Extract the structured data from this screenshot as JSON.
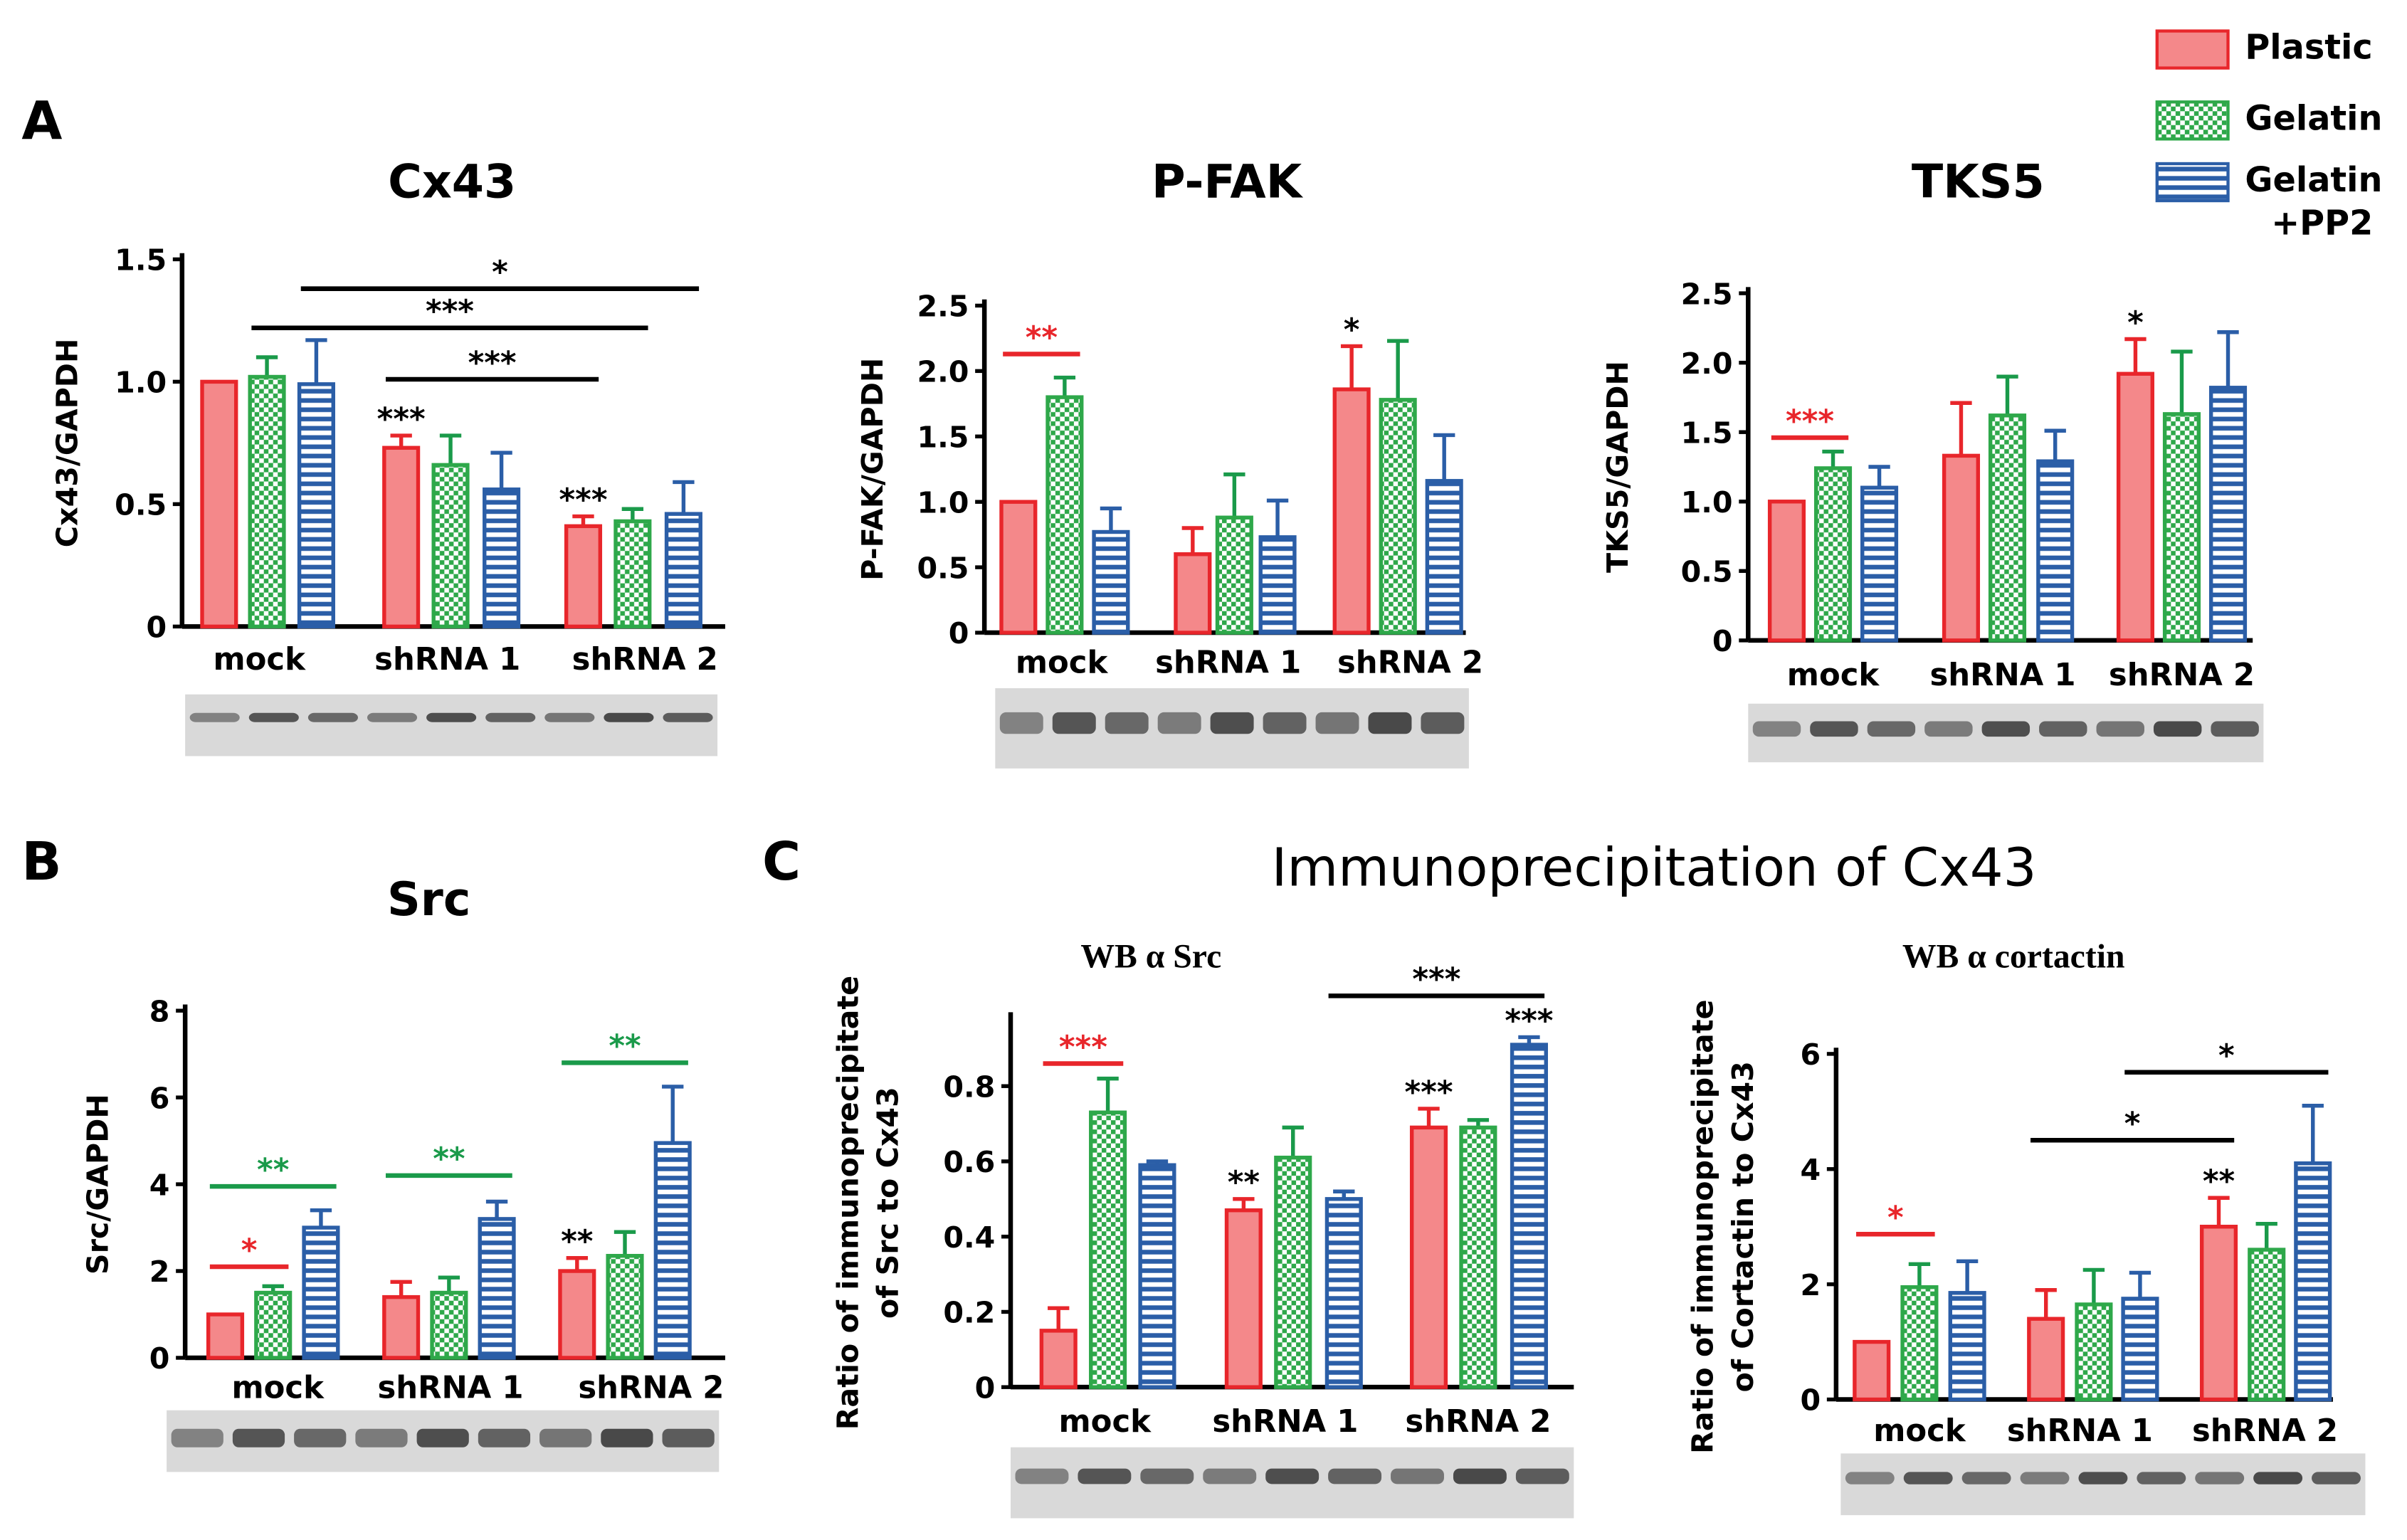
{
  "figure": {
    "panel_letters": [
      "A",
      "B",
      "C"
    ],
    "c_title": "Immunoprecipitation of Cx43",
    "legend": [
      {
        "label": "Plastic",
        "color": "#e8262b",
        "pattern": "solid"
      },
      {
        "label": "Gelatin",
        "color": "#2ea84a",
        "pattern": "checker"
      },
      {
        "label": "Gelatin",
        "label2": "+PP2",
        "color": "#2b5ea7",
        "pattern": "stripes"
      }
    ]
  },
  "chart_data": [
    {
      "type": "bar",
      "title": "Cx43",
      "ylabel": "Cx43/GAPDH",
      "ylim": [
        0,
        1.5
      ],
      "yticks": [
        "0",
        "0.5",
        "1.0",
        "1.5"
      ],
      "ytick_values": [
        0,
        0.5,
        1.0,
        1.5
      ],
      "categories": [
        "mock",
        "shRNA 1",
        "shRNA 2"
      ],
      "series": [
        {
          "name": "Plastic",
          "values": [
            1.0,
            0.73,
            0.41
          ],
          "errors": [
            0,
            0.05,
            0.04
          ]
        },
        {
          "name": "Gelatin",
          "values": [
            1.02,
            0.66,
            0.43
          ],
          "errors": [
            0.08,
            0.12,
            0.05
          ]
        },
        {
          "name": "Gelatin +PP2",
          "values": [
            0.99,
            0.56,
            0.46
          ],
          "errors": [
            0.18,
            0.15,
            0.13
          ]
        }
      ],
      "sig_lines": [
        {
          "from_bar": 2,
          "to_bar": 8,
          "level": 1.38,
          "text": "*",
          "color": "#000"
        },
        {
          "from_bar": 1,
          "to_bar": 7,
          "level": 1.22,
          "text": "***",
          "color": "#000"
        },
        {
          "from_bar": 3,
          "to_bar": 6,
          "level": 1.01,
          "text": "***",
          "color": "#000"
        }
      ],
      "bar_marks": [
        {
          "bar": 3,
          "text": "***",
          "color": "#000"
        },
        {
          "bar": 6,
          "text": "***",
          "color": "#000"
        }
      ]
    },
    {
      "type": "bar",
      "title": "P-FAK",
      "ylabel": "P-FAK/GAPDH",
      "ylim": [
        0,
        2.5
      ],
      "yticks": [
        "0",
        "0.5",
        "1.0",
        "1.5",
        "2.0",
        "2.5"
      ],
      "ytick_values": [
        0,
        0.5,
        1,
        1.5,
        2,
        2.5
      ],
      "categories": [
        "mock",
        "shRNA 1",
        "shRNA 2"
      ],
      "series": [
        {
          "name": "Plastic",
          "values": [
            1.0,
            0.6,
            1.86
          ],
          "errors": [
            0,
            0.2,
            0.33
          ]
        },
        {
          "name": "Gelatin",
          "values": [
            1.8,
            0.88,
            1.78
          ],
          "errors": [
            0.15,
            0.33,
            0.45
          ]
        },
        {
          "name": "Gelatin +PP2",
          "values": [
            0.77,
            0.73,
            1.16
          ],
          "errors": [
            0.18,
            0.28,
            0.35
          ]
        }
      ],
      "sig_lines": [
        {
          "from_bar": 0,
          "to_bar": 1,
          "level": 2.13,
          "text": "**",
          "color": "#e8262b"
        }
      ],
      "bar_marks": [
        {
          "bar": 6,
          "text": "*",
          "color": "#000"
        }
      ]
    },
    {
      "type": "bar",
      "title": "TKS5",
      "ylabel": "TKS5/GAPDH",
      "ylim": [
        0,
        2.5
      ],
      "yticks": [
        "0",
        "0.5",
        "1.0",
        "1.5",
        "2.0",
        "2.5"
      ],
      "ytick_values": [
        0,
        0.5,
        1,
        1.5,
        2,
        2.5
      ],
      "categories": [
        "mock",
        "shRNA 1",
        "shRNA 2"
      ],
      "series": [
        {
          "name": "Plastic",
          "values": [
            1.0,
            1.33,
            1.92
          ],
          "errors": [
            0,
            0.38,
            0.25
          ]
        },
        {
          "name": "Gelatin",
          "values": [
            1.24,
            1.62,
            1.63
          ],
          "errors": [
            0.12,
            0.28,
            0.45
          ]
        },
        {
          "name": "Gelatin +PP2",
          "values": [
            1.1,
            1.29,
            1.82
          ],
          "errors": [
            0.15,
            0.22,
            0.4
          ]
        }
      ],
      "sig_lines": [
        {
          "from_bar": 0,
          "to_bar": 1,
          "level": 1.46,
          "text": "***",
          "color": "#e8262b"
        }
      ],
      "bar_marks": [
        {
          "bar": 6,
          "text": "*",
          "color": "#000"
        }
      ]
    },
    {
      "type": "bar",
      "title": "Src",
      "ylabel": "Src/GAPDH",
      "ylim": [
        0,
        8
      ],
      "yticks": [
        "0",
        "2",
        "4",
        "6",
        "8"
      ],
      "ytick_values": [
        0,
        2,
        4,
        6,
        8
      ],
      "categories": [
        "mock",
        "shRNA 1",
        "shRNA 2"
      ],
      "series": [
        {
          "name": "Plastic",
          "values": [
            1.0,
            1.4,
            2.0
          ],
          "errors": [
            0,
            0.35,
            0.3
          ]
        },
        {
          "name": "Gelatin",
          "values": [
            1.5,
            1.5,
            2.35
          ],
          "errors": [
            0.15,
            0.35,
            0.55
          ]
        },
        {
          "name": "Gelatin +PP2",
          "values": [
            3.0,
            3.2,
            4.95
          ],
          "errors": [
            0.4,
            0.4,
            1.3
          ]
        }
      ],
      "sig_lines": [
        {
          "from_bar": 0,
          "to_bar": 1,
          "level": 2.1,
          "text": "*",
          "color": "#e8262b"
        },
        {
          "from_bar": 0,
          "to_bar": 2,
          "level": 3.95,
          "text": "**",
          "color": "#1a9a4a"
        },
        {
          "from_bar": 3,
          "to_bar": 5,
          "level": 4.2,
          "text": "**",
          "color": "#1a9a4a"
        },
        {
          "from_bar": 6,
          "to_bar": 8,
          "level": 6.8,
          "text": "**",
          "color": "#1a9a4a"
        }
      ],
      "bar_marks": [
        {
          "bar": 6,
          "text": "**",
          "color": "#000"
        }
      ]
    },
    {
      "type": "bar",
      "title": "WB α Src",
      "ylabel": "Ratio of immunoprecipitate",
      "ylabel2": "of Src to Cx43",
      "ylim": [
        0,
        0.98
      ],
      "yticks": [
        "0",
        "0.2",
        "0.4",
        "0.6",
        "0.8"
      ],
      "ytick_values": [
        0,
        0.2,
        0.4,
        0.6,
        0.8
      ],
      "categories": [
        "mock",
        "shRNA 1",
        "shRNA 2"
      ],
      "series": [
        {
          "name": "Plastic",
          "values": [
            0.15,
            0.47,
            0.69
          ],
          "errors": [
            0.06,
            0.03,
            0.05
          ]
        },
        {
          "name": "Gelatin",
          "values": [
            0.73,
            0.61,
            0.69
          ],
          "errors": [
            0.09,
            0.08,
            0.02
          ]
        },
        {
          "name": "Gelatin +PP2",
          "values": [
            0.59,
            0.5,
            0.91
          ],
          "errors": [
            0.01,
            0.02,
            0.02
          ]
        }
      ],
      "sig_lines": [
        {
          "from_bar": 0,
          "to_bar": 1,
          "level": 0.86,
          "text": "***",
          "color": "#e8262b"
        },
        {
          "from_bar": 5,
          "to_bar": 8,
          "level": 1.04,
          "text": "***",
          "color": "#000"
        }
      ],
      "bar_marks": [
        {
          "bar": 3,
          "text": "**",
          "color": "#000"
        },
        {
          "bar": 6,
          "text": "***",
          "color": "#000"
        },
        {
          "bar": 8,
          "text": "***",
          "color": "#000"
        }
      ]
    },
    {
      "type": "bar",
      "title": "WB α cortactin",
      "ylabel": "Ratio of immunoprecipitate",
      "ylabel2": "of Cortactin to Cx43",
      "ylim": [
        0,
        6
      ],
      "yticks": [
        "0",
        "2",
        "4",
        "6"
      ],
      "ytick_values": [
        0,
        2,
        4,
        6
      ],
      "categories": [
        "mock",
        "shRNA 1",
        "shRNA 2"
      ],
      "series": [
        {
          "name": "Plastic",
          "values": [
            1.0,
            1.4,
            3.0
          ],
          "errors": [
            0,
            0.5,
            0.5
          ]
        },
        {
          "name": "Gelatin",
          "values": [
            1.95,
            1.65,
            2.6
          ],
          "errors": [
            0.4,
            0.6,
            0.45
          ]
        },
        {
          "name": "Gelatin +PP2",
          "values": [
            1.85,
            1.75,
            4.1
          ],
          "errors": [
            0.55,
            0.45,
            1.0
          ]
        }
      ],
      "sig_lines": [
        {
          "from_bar": 0,
          "to_bar": 1,
          "level": 2.87,
          "text": "*",
          "color": "#e8262b"
        },
        {
          "from_bar": 3,
          "to_bar": 6,
          "level": 4.5,
          "text": "*",
          "color": "#000"
        },
        {
          "from_bar": 5,
          "to_bar": 8,
          "level": 5.68,
          "text": "*",
          "color": "#000"
        }
      ],
      "bar_marks": [
        {
          "bar": 6,
          "text": "**",
          "color": "#000"
        }
      ]
    }
  ]
}
